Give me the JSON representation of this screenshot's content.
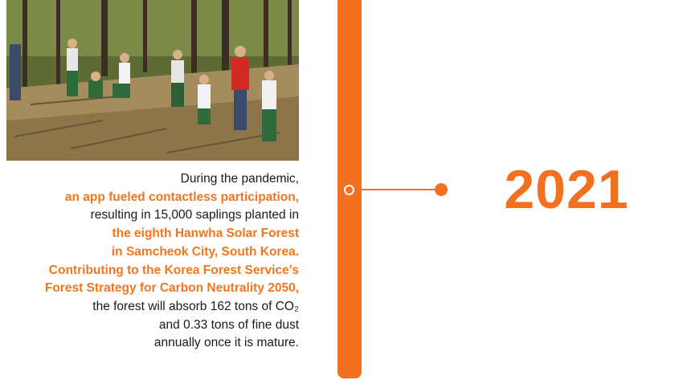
{
  "year": "2021",
  "caption": {
    "lines": [
      {
        "text": "During the pandemic,",
        "style": "normal"
      },
      {
        "text": "an app fueled contactless participation,",
        "style": "accent"
      },
      {
        "text": "resulting in 15,000 saplings planted in",
        "style": "normal"
      },
      {
        "text": "the eighth Hanwha Solar Forest",
        "style": "accent"
      },
      {
        "text": "in Samcheok City, South Korea.",
        "style": "accent"
      },
      {
        "text": "Contributing to the Korea Forest Service’s",
        "style": "accent"
      },
      {
        "text": "Forest Strategy for Carbon Neutrality 2050,",
        "style": "accent"
      },
      {
        "text": "the forest will absorb 162 tons of CO₂",
        "style": "normal"
      },
      {
        "text": "and 0.33 tons of fine dust",
        "style": "normal"
      },
      {
        "text": "annually once it is mature.",
        "style": "normal"
      }
    ]
  },
  "colors": {
    "accent": "#f37021",
    "text": "#1a1a1a"
  }
}
